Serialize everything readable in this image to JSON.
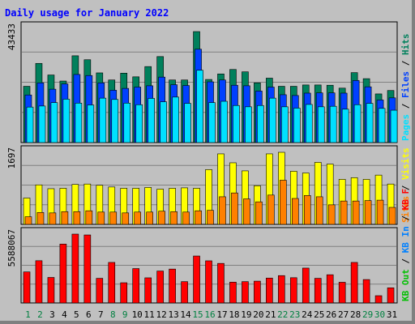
{
  "colors": {
    "background": "#c0c0c0",
    "grid": "#808080",
    "title": "#0000ff",
    "hits": "#00805c",
    "files": "#0040ff",
    "pages": "#00e0ff",
    "visits": "#ffff00",
    "sites": "#ff8000",
    "kbf": "#ff0000",
    "kbin": "#0080ff",
    "kbout": "#00c000",
    "day_normal": "#008040",
    "day_weekday": "#000000"
  },
  "chart_data": {
    "type": "bar",
    "title": "Daily usage for January 2022",
    "days": [
      "1",
      "2",
      "3",
      "4",
      "5",
      "6",
      "7",
      "8",
      "9",
      "10",
      "11",
      "12",
      "13",
      "14",
      "15",
      "16",
      "17",
      "18",
      "19",
      "20",
      "21",
      "22",
      "23",
      "24",
      "25",
      "26",
      "27",
      "28",
      "29",
      "30",
      "31"
    ],
    "weekend_days": [
      "1",
      "2",
      "8",
      "9",
      "15",
      "16",
      "22",
      "23",
      "29",
      "30"
    ],
    "panels": [
      {
        "id": "top",
        "max_label": "43433",
        "ymax": 43433,
        "right_labels": [
          {
            "text": "Hits",
            "color": "#00805c"
          },
          {
            "text": " / ",
            "color": "#000000"
          },
          {
            "text": "Files",
            "color": "#0040ff"
          },
          {
            "text": " / ",
            "color": "#000000"
          },
          {
            "text": "Pages",
            "color": "#00e0ff"
          }
        ],
        "series": [
          {
            "name": "Hits",
            "color": "#00805c",
            "values": [
              21400,
              30100,
              25700,
              23400,
              33000,
              31500,
              26500,
              23800,
              26400,
              25000,
              28900,
              32700,
              23800,
              23800,
              42200,
              24000,
              26100,
              27800,
              26900,
              22700,
              24500,
              21400,
              21400,
              21900,
              21900,
              21800,
              20700,
              26600,
              24300,
              18500,
              19800
            ]
          },
          {
            "name": "Files",
            "color": "#0040ff",
            "values": [
              18100,
              22700,
              20300,
              22300,
              25900,
              25500,
              22700,
              19900,
              20600,
              21100,
              21600,
              24900,
              22000,
              21700,
              35500,
              23100,
              23800,
              21800,
              21600,
              19600,
              21100,
              18200,
              17900,
              18800,
              18900,
              18900,
              18800,
              23600,
              21200,
              16200,
              17000
            ]
          },
          {
            "name": "Pages",
            "color": "#00e0ff",
            "values": [
              13500,
              13900,
              15200,
              16500,
              15000,
              14300,
              16900,
              16400,
              15000,
              14400,
              16800,
              15500,
              17300,
              14900,
              27500,
              15200,
              15700,
              14100,
              13600,
              14100,
              16900,
              13600,
              13100,
              14500,
              13600,
              13800,
              12700,
              14400,
              14900,
              13000,
              12300
            ]
          }
        ]
      },
      {
        "id": "middle",
        "max_label": "1697",
        "ymax": 1697,
        "right_labels": [
          {
            "text": "Visits",
            "color": "#ffff00"
          },
          {
            "text": " / ",
            "color": "#000000"
          },
          {
            "text": "Sites",
            "color": "#ff8000"
          }
        ],
        "series": [
          {
            "name": "Visits",
            "color": "#ffff00",
            "values": [
              620,
              930,
              840,
              850,
              940,
              950,
              920,
              880,
              850,
              850,
              870,
              830,
              850,
              860,
              850,
              1290,
              1660,
              1450,
              1260,
              910,
              1660,
              1697,
              1250,
              1210,
              1460,
              1420,
              1060,
              1100,
              1060,
              1160,
              950
            ]
          },
          {
            "name": "Sites",
            "color": "#ff8000",
            "values": [
              180,
              280,
              270,
              300,
              300,
              320,
              290,
              290,
              270,
              290,
              290,
              310,
              300,
              290,
              320,
              330,
              650,
              740,
              600,
              530,
              690,
              1040,
              610,
              680,
              650,
              460,
              550,
              550,
              560,
              570,
              400
            ]
          }
        ]
      },
      {
        "id": "bottom",
        "max_label": "5588067",
        "ymax": 5588067,
        "right_labels": [
          {
            "text": "KB F",
            "color": "#ff0000"
          },
          {
            "text": " / ",
            "color": "#000000"
          },
          {
            "text": "KB In",
            "color": "#0080ff"
          },
          {
            "text": " / ",
            "color": "#000000"
          },
          {
            "text": "KB Out",
            "color": "#00c000"
          }
        ],
        "series": [
          {
            "name": "KB F",
            "color": "#ff0000",
            "values": [
              2520000,
              3430000,
              2070000,
              4780000,
              5588067,
              5520000,
              2000000,
              3290000,
              1640000,
              2790000,
              2040000,
              2590000,
              2750000,
              1730000,
              3810000,
              3420000,
              3210000,
              1690000,
              1730000,
              1770000,
              2020000,
              2220000,
              2050000,
              2830000,
              2000000,
              2290000,
              1680000,
              3290000,
              1900000,
              590000,
              1230000
            ]
          }
        ]
      }
    ]
  }
}
